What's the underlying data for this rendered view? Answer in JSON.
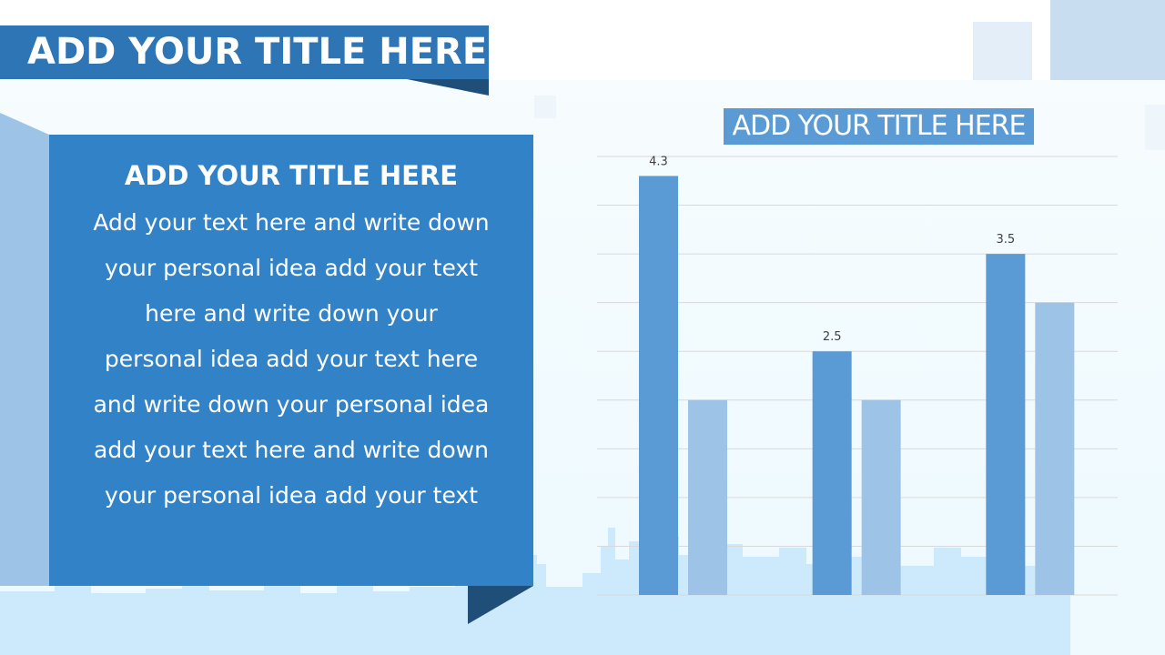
{
  "header": {
    "title": "ADD YOUR TITLE HERE"
  },
  "text_box": {
    "title": "ADD YOUR TITLE HERE",
    "body": "Add your text here and write down your personal idea add your text here and write down your personal idea add your text here and write down your personal idea add your text here and write down your personal idea add your text"
  },
  "colors": {
    "primary": "#2e75b6",
    "box": "#3282c8",
    "dark": "#1f4e79",
    "series1": "#5b9bd5",
    "series2": "#9dc3e6"
  },
  "chart_data": {
    "type": "bar",
    "title": "ADD YOUR TITLE HERE",
    "categories": [
      "",
      "",
      ""
    ],
    "series": [
      {
        "values": [
          4.3,
          2.5,
          3.5
        ],
        "labels": [
          "4.3",
          "2.5",
          "3.5"
        ]
      },
      {
        "values": [
          2,
          2,
          3
        ]
      }
    ],
    "ylim": [
      0,
      4.5
    ],
    "grid": true,
    "legend": "none"
  }
}
